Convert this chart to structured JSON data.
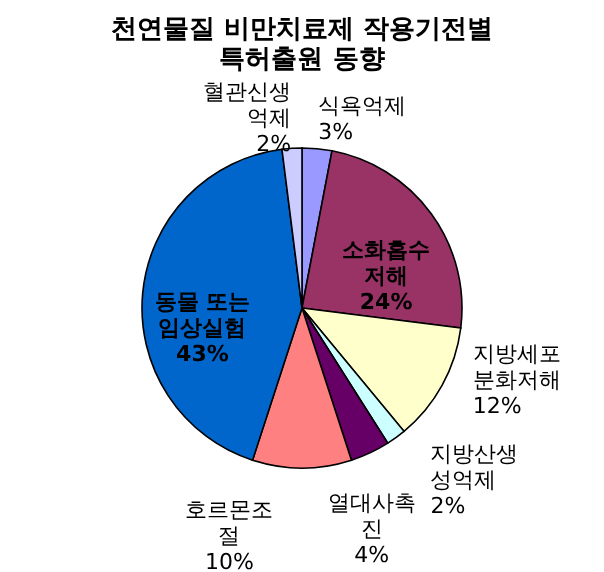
{
  "chart_data": {
    "type": "pie",
    "title": "천연물질 비만치료제 작용기전별 특허출원 동향",
    "categories": [
      "식욕억제",
      "소화흡수저해",
      "지방세포분화저해",
      "지방산생성억제",
      "열대사촉진",
      "호르몬조절",
      "동물 또는 임상실험",
      "혈관신생억제"
    ],
    "values": [
      3,
      24,
      12,
      2,
      4,
      10,
      43,
      2
    ],
    "value_labels": [
      "3%",
      "24%",
      "12%",
      "2%",
      "4%",
      "10%",
      "43%",
      "2%"
    ],
    "colors": [
      "#9999ff",
      "#993366",
      "#ffffcc",
      "#ccffff",
      "#660066",
      "#ff8080",
      "#0066cc",
      "#ccccff"
    ],
    "legend": false
  }
}
